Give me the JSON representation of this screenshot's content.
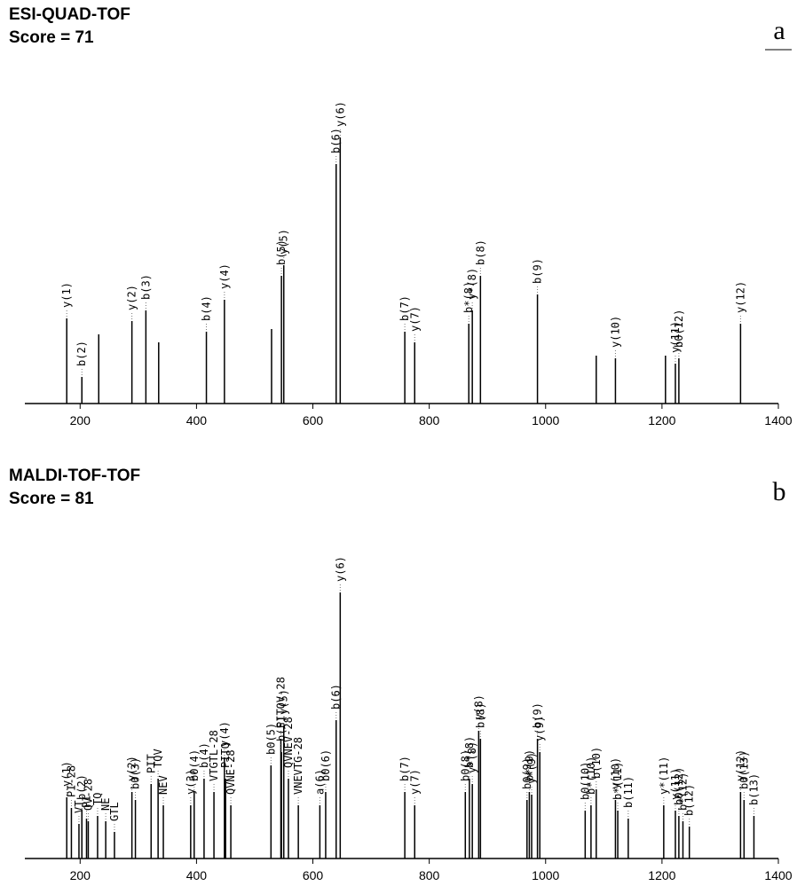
{
  "chart_data": [
    {
      "type": "stick",
      "title": "ESI-QUAD-TOF",
      "subtitle": "Score = 71",
      "panel_label": "a",
      "color": "#000000",
      "xlim": [
        105,
        1400
      ],
      "xticks": [
        200,
        400,
        600,
        800,
        1000,
        1200,
        1400
      ],
      "ylim": [
        0,
        100
      ],
      "x": [
        177,
        203,
        232,
        289,
        313,
        335,
        417,
        448,
        529,
        546,
        550,
        640,
        647,
        758,
        775,
        868,
        874,
        888,
        986,
        1087,
        1120,
        1206,
        1223,
        1229,
        1335
      ],
      "values": [
        32,
        10,
        26,
        31,
        35,
        23,
        27,
        39,
        28,
        48,
        52,
        90,
        100,
        27,
        23,
        30,
        35,
        48,
        41,
        18,
        17,
        18,
        15,
        17,
        30
      ],
      "labels": [
        "y(1)",
        "b(2)",
        null,
        "y(2)",
        "b(3)",
        null,
        "b(4)",
        "y(4)",
        null,
        "b(5)",
        "y(5)",
        "b(6)",
        "y(6)",
        "b(7)",
        "y(7)",
        "b*(8)",
        "y*(8)",
        "b(8)",
        "b(9)",
        null,
        "y(10)",
        null,
        "y(11)",
        "b0(12)",
        "y(12)"
      ]
    },
    {
      "type": "stick",
      "title": "MALDI-TOF-TOF",
      "subtitle": "Score = 81",
      "panel_label": "b",
      "color": "#000000",
      "xlim": [
        105,
        1400
      ],
      "xticks": [
        200,
        400,
        600,
        800,
        1000,
        1200,
        1400
      ],
      "ylim": [
        0,
        100
      ],
      "x": [
        177,
        185,
        198,
        203,
        211,
        214,
        230,
        244,
        259,
        289,
        295,
        322,
        334,
        343,
        390,
        396,
        413,
        430,
        448,
        450,
        459,
        528,
        545,
        546,
        550,
        558,
        575,
        612,
        622,
        640,
        647,
        758,
        775,
        862,
        869,
        874,
        885,
        888,
        968,
        972,
        976,
        986,
        990,
        1068,
        1078,
        1087,
        1120,
        1124,
        1142,
        1203,
        1223,
        1229,
        1236,
        1247,
        1335,
        1341,
        1358
      ],
      "values": [
        23,
        19,
        13,
        18,
        15,
        14,
        16,
        14,
        10,
        25,
        22,
        28,
        30,
        20,
        20,
        25,
        30,
        25,
        38,
        30,
        20,
        35,
        45,
        40,
        50,
        30,
        20,
        20,
        25,
        52,
        100,
        25,
        20,
        25,
        30,
        28,
        48,
        45,
        22,
        25,
        24,
        45,
        40,
        18,
        20,
        26,
        22,
        18,
        15,
        20,
        18,
        16,
        14,
        12,
        25,
        22,
        16
      ],
      "labels": [
        "y(1)",
        "PI-28",
        "VT",
        "b(2)",
        "PI",
        "QV-28",
        "TQ",
        "NE",
        "GTL",
        "y(2)",
        "b0(3)",
        "PIT",
        "TQV",
        "NEV",
        "y(3)",
        "b0(4)",
        "b(4)",
        "VTGTL-28",
        "y(4)",
        "PITQ",
        "QVNE-28",
        "b0(5)",
        "PITQV-28",
        "b(5)",
        "y(5)",
        "QVNEV-28",
        "VNEVTG-28",
        "a(6)",
        "b0(6)",
        "b(6)",
        "y(6)",
        "b(7)",
        "y(7)",
        "b0(8)",
        "b*(8)",
        "y*(8)",
        "y(8)",
        "b(8)",
        "b0(9)",
        "b*(9)",
        "y*(9)",
        "b(9)",
        "y(9)",
        "b0(10)",
        "b*(10)",
        "b(10)",
        "y(10)",
        "b*(11)",
        "b(11)",
        "y*(11)",
        "y(11)",
        "b0(12)",
        "b*(12)",
        "b(12)",
        "y(12)",
        "b0(13)",
        "b(13)"
      ]
    }
  ]
}
